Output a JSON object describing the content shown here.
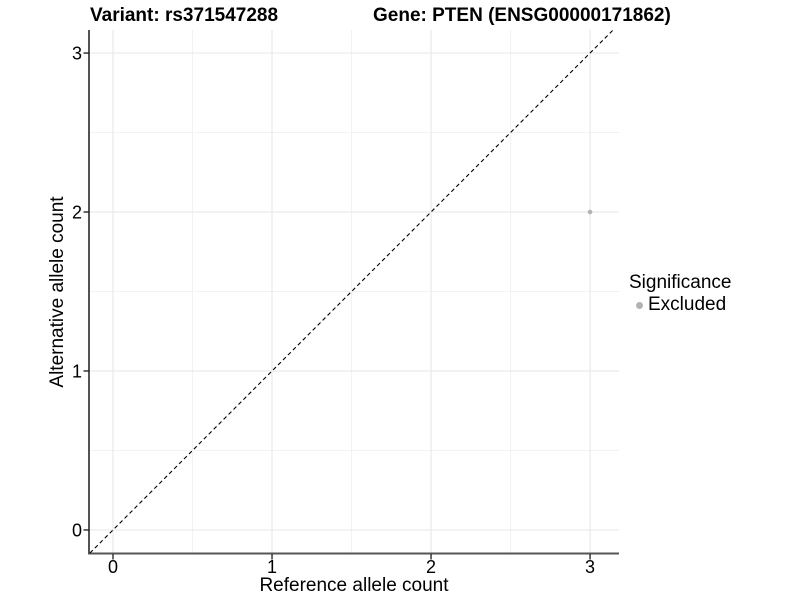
{
  "chart_data": {
    "type": "scatter",
    "title_variant": "Variant: rs371547288",
    "title_gene": "Gene: PTEN (ENSG00000171862)",
    "xlabel": "Reference allele count",
    "ylabel": "Alternative allele count",
    "xlim": [
      -0.151,
      3.182
    ],
    "ylim": [
      -0.145,
      3.145
    ],
    "xticks": [
      0,
      1,
      2,
      3
    ],
    "yticks": [
      0,
      1,
      2,
      3
    ],
    "xticks_minor": [
      0.5,
      1.5,
      2.5
    ],
    "yticks_minor": [
      0.5,
      1.5,
      2.5
    ],
    "grid": "major+minor",
    "identity_line": {
      "style": "dashed",
      "color": "#000000",
      "equation": "y = x"
    },
    "points": [
      {
        "x": 3,
        "y": 2,
        "significance": "Excluded",
        "color": "#b3b3b3"
      }
    ],
    "legend": {
      "position": "right",
      "title": "Significance",
      "items": [
        {
          "label": "Excluded",
          "color": "#b3b3b3",
          "marker": "circle"
        }
      ]
    },
    "colors": {
      "background": "#ffffff",
      "grid_major": "#e9e9e9",
      "grid_minor": "#f2f2f2",
      "axis_line_y": "#1a1a1a",
      "axis_line_x": "#555555",
      "tick_mark": "#1a1a1a",
      "tick_text": "#000000",
      "point": "#b3b3b3"
    }
  }
}
